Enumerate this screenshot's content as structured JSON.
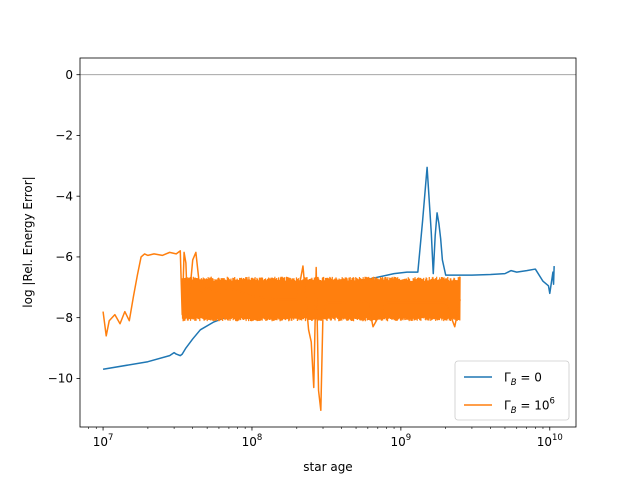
{
  "chart_data": {
    "type": "line",
    "title": "",
    "xlabel": "star age",
    "ylabel": "log |Rel. Energy Error|",
    "xscale": "log",
    "xlim": [
      7000000,
      15000000000
    ],
    "ylim": [
      -11.6,
      0.55
    ],
    "x_ticks": [
      {
        "value": 10000000,
        "base": "10",
        "exp": "7"
      },
      {
        "value": 100000000,
        "base": "10",
        "exp": "8"
      },
      {
        "value": 1000000000,
        "base": "10",
        "exp": "9"
      },
      {
        "value": 10000000000,
        "base": "10",
        "exp": "10"
      }
    ],
    "y_ticks": [
      {
        "value": 0,
        "label": "0"
      },
      {
        "value": -2,
        "label": "−2"
      },
      {
        "value": -4,
        "label": "−4"
      },
      {
        "value": -6,
        "label": "−6"
      },
      {
        "value": -8,
        "label": "−8"
      },
      {
        "value": -10,
        "label": "−10"
      }
    ],
    "reference_line": {
      "y": 0,
      "color": "#999999"
    },
    "grid": false,
    "legend_position": "lower-right",
    "series": [
      {
        "name": "Γ_B = 0",
        "legend_main": "Γ",
        "legend_sub": "B",
        "legend_rest": " = 0",
        "color": "#1f77b4",
        "style": "smooth",
        "x": [
          10000000,
          20000000,
          28000000,
          30000000,
          31000000,
          33000000,
          34000000,
          36000000,
          40000000,
          45000000,
          55000000,
          70000000,
          90000000,
          130000000,
          200000000,
          300000000,
          450000000,
          650000000,
          900000000,
          1100000000,
          1300000000,
          1400000000,
          1500000000,
          1600000000,
          1650000000,
          1700000000,
          1750000000,
          1800000000,
          1850000000,
          1900000000,
          2000000000,
          2500000000,
          3000000000,
          4000000000,
          5000000000,
          5500000000,
          6000000000,
          7000000000,
          8000000000,
          9000000000,
          9800000000,
          10000000000,
          10500000000,
          10600000000,
          10700000000
        ],
        "y": [
          -9.7,
          -9.45,
          -9.25,
          -9.15,
          -9.2,
          -9.25,
          -9.2,
          -9.0,
          -8.7,
          -8.4,
          -8.15,
          -7.95,
          -7.85,
          -7.55,
          -7.3,
          -7.05,
          -6.85,
          -6.7,
          -6.55,
          -6.5,
          -6.5,
          -4.8,
          -3.05,
          -5.2,
          -6.55,
          -5.3,
          -4.55,
          -4.9,
          -5.4,
          -6.1,
          -6.6,
          -6.6,
          -6.6,
          -6.58,
          -6.55,
          -6.45,
          -6.5,
          -6.45,
          -6.4,
          -6.8,
          -6.95,
          -7.2,
          -6.5,
          -6.9,
          -6.3
        ]
      },
      {
        "name": "Γ_B = 10⁶",
        "legend_main": "Γ",
        "legend_sub": "B",
        "legend_rest": " = 10",
        "legend_sup": "6",
        "color": "#ff7f0e",
        "style": "noisy",
        "x": [
          10000000,
          10500000,
          11000000,
          12000000,
          13000000,
          14000000,
          15000000,
          16000000,
          17000000,
          18000000,
          19000000,
          20000000,
          22000000,
          25000000,
          28000000,
          31000000,
          33000000,
          34000000,
          35000000,
          36000000,
          37000000,
          40000000,
          42000000,
          45000000,
          50000000,
          60000000,
          70000000,
          80000000,
          100000000,
          150000000,
          200000000,
          220000000,
          240000000,
          250000000,
          260000000,
          270000000,
          280000000,
          290000000,
          300000000,
          320000000,
          400000000,
          600000000,
          650000000,
          800000000,
          1000000000,
          1500000000,
          2000000000,
          2300000000,
          2500000000
        ],
        "y": [
          -7.8,
          -8.6,
          -8.1,
          -7.9,
          -8.2,
          -7.8,
          -8.1,
          -7.3,
          -6.6,
          -6.0,
          -5.9,
          -5.95,
          -5.9,
          -5.95,
          -5.85,
          -5.9,
          -5.8,
          -7.9,
          -5.85,
          -6.2,
          -7.9,
          -6.1,
          -5.85,
          -7.2,
          -7.0,
          -7.2,
          -7.05,
          -7.1,
          -7.3,
          -7.4,
          -7.4,
          -6.3,
          -8.4,
          -8.8,
          -10.3,
          -6.35,
          -10.4,
          -11.05,
          -7.8,
          -7.5,
          -7.5,
          -7.45,
          -8.3,
          -7.5,
          -7.5,
          -7.5,
          -7.5,
          -8.3,
          -7.4
        ],
        "band_x": [
          34000000,
          2500000000
        ],
        "band_upper": -6.8,
        "band_lower": -8.0
      }
    ]
  }
}
